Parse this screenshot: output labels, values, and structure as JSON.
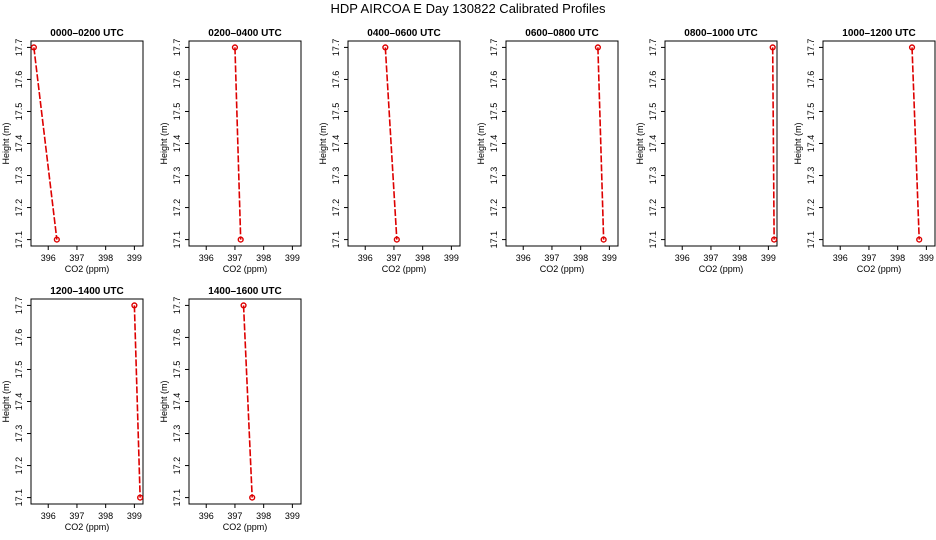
{
  "figure": {
    "title": "HDP AIRCOA E  Day 130822  Calibrated Profiles"
  },
  "chart_data": [
    {
      "type": "line",
      "title": "0000–0200 UTC",
      "xlabel": "CO2 (ppm)",
      "ylabel": "Height (m)",
      "xlim": [
        395.4,
        399.3
      ],
      "ylim": [
        17.08,
        17.72
      ],
      "xticks": [
        396,
        397,
        398,
        399
      ],
      "yticks": [
        17.1,
        17.2,
        17.3,
        17.4,
        17.5,
        17.6,
        17.7
      ],
      "grid": false,
      "series": [
        {
          "x": [
            395.5,
            396.3
          ],
          "y": [
            17.7,
            17.1
          ],
          "color": "#dd0000"
        }
      ]
    },
    {
      "type": "line",
      "title": "0200–0400 UTC",
      "xlabel": "CO2 (ppm)",
      "ylabel": "Height (m)",
      "xlim": [
        395.4,
        399.3
      ],
      "ylim": [
        17.08,
        17.72
      ],
      "xticks": [
        396,
        397,
        398,
        399
      ],
      "yticks": [
        17.1,
        17.2,
        17.3,
        17.4,
        17.5,
        17.6,
        17.7
      ],
      "grid": false,
      "series": [
        {
          "x": [
            397.0,
            397.2
          ],
          "y": [
            17.7,
            17.1
          ],
          "color": "#dd0000"
        }
      ]
    },
    {
      "type": "line",
      "title": "0400–0600 UTC",
      "xlabel": "CO2 (ppm)",
      "ylabel": "Height (m)",
      "xlim": [
        395.4,
        399.3
      ],
      "ylim": [
        17.08,
        17.72
      ],
      "xticks": [
        396,
        397,
        398,
        399
      ],
      "yticks": [
        17.1,
        17.2,
        17.3,
        17.4,
        17.5,
        17.6,
        17.7
      ],
      "grid": false,
      "series": [
        {
          "x": [
            396.7,
            397.1
          ],
          "y": [
            17.7,
            17.1
          ],
          "color": "#dd0000"
        }
      ]
    },
    {
      "type": "line",
      "title": "0600–0800 UTC",
      "xlabel": "CO2 (ppm)",
      "ylabel": "Height (m)",
      "xlim": [
        395.4,
        399.3
      ],
      "ylim": [
        17.08,
        17.72
      ],
      "xticks": [
        396,
        397,
        398,
        399
      ],
      "yticks": [
        17.1,
        17.2,
        17.3,
        17.4,
        17.5,
        17.6,
        17.7
      ],
      "grid": false,
      "series": [
        {
          "x": [
            398.6,
            398.8
          ],
          "y": [
            17.7,
            17.1
          ],
          "color": "#dd0000"
        }
      ]
    },
    {
      "type": "line",
      "title": "0800–1000 UTC",
      "xlabel": "CO2 (ppm)",
      "ylabel": "Height (m)",
      "xlim": [
        395.4,
        399.3
      ],
      "ylim": [
        17.08,
        17.72
      ],
      "xticks": [
        396,
        397,
        398,
        399
      ],
      "yticks": [
        17.1,
        17.2,
        17.3,
        17.4,
        17.5,
        17.6,
        17.7
      ],
      "grid": false,
      "series": [
        {
          "x": [
            399.15,
            399.2
          ],
          "y": [
            17.7,
            17.1
          ],
          "color": "#dd0000"
        }
      ]
    },
    {
      "type": "line",
      "title": "1000–1200 UTC",
      "xlabel": "CO2 (ppm)",
      "ylabel": "Height (m)",
      "xlim": [
        395.4,
        399.3
      ],
      "ylim": [
        17.08,
        17.72
      ],
      "xticks": [
        396,
        397,
        398,
        399
      ],
      "yticks": [
        17.1,
        17.2,
        17.3,
        17.4,
        17.5,
        17.6,
        17.7
      ],
      "grid": false,
      "series": [
        {
          "x": [
            398.5,
            398.75
          ],
          "y": [
            17.7,
            17.1
          ],
          "color": "#dd0000"
        }
      ]
    },
    {
      "type": "line",
      "title": "1200–1400 UTC",
      "xlabel": "CO2 (ppm)",
      "ylabel": "Height (m)",
      "xlim": [
        395.4,
        399.3
      ],
      "ylim": [
        17.08,
        17.72
      ],
      "xticks": [
        396,
        397,
        398,
        399
      ],
      "yticks": [
        17.1,
        17.2,
        17.3,
        17.4,
        17.5,
        17.6,
        17.7
      ],
      "grid": false,
      "series": [
        {
          "x": [
            399.0,
            399.2
          ],
          "y": [
            17.7,
            17.1
          ],
          "color": "#dd0000"
        }
      ]
    },
    {
      "type": "line",
      "title": "1400–1600 UTC",
      "xlabel": "CO2 (ppm)",
      "ylabel": "Height (m)",
      "xlim": [
        395.4,
        399.3
      ],
      "ylim": [
        17.08,
        17.72
      ],
      "xticks": [
        396,
        397,
        398,
        399
      ],
      "yticks": [
        17.1,
        17.2,
        17.3,
        17.4,
        17.5,
        17.6,
        17.7
      ],
      "grid": false,
      "series": [
        {
          "x": [
            397.3,
            397.6
          ],
          "y": [
            17.7,
            17.1
          ],
          "color": "#dd0000"
        }
      ]
    }
  ]
}
